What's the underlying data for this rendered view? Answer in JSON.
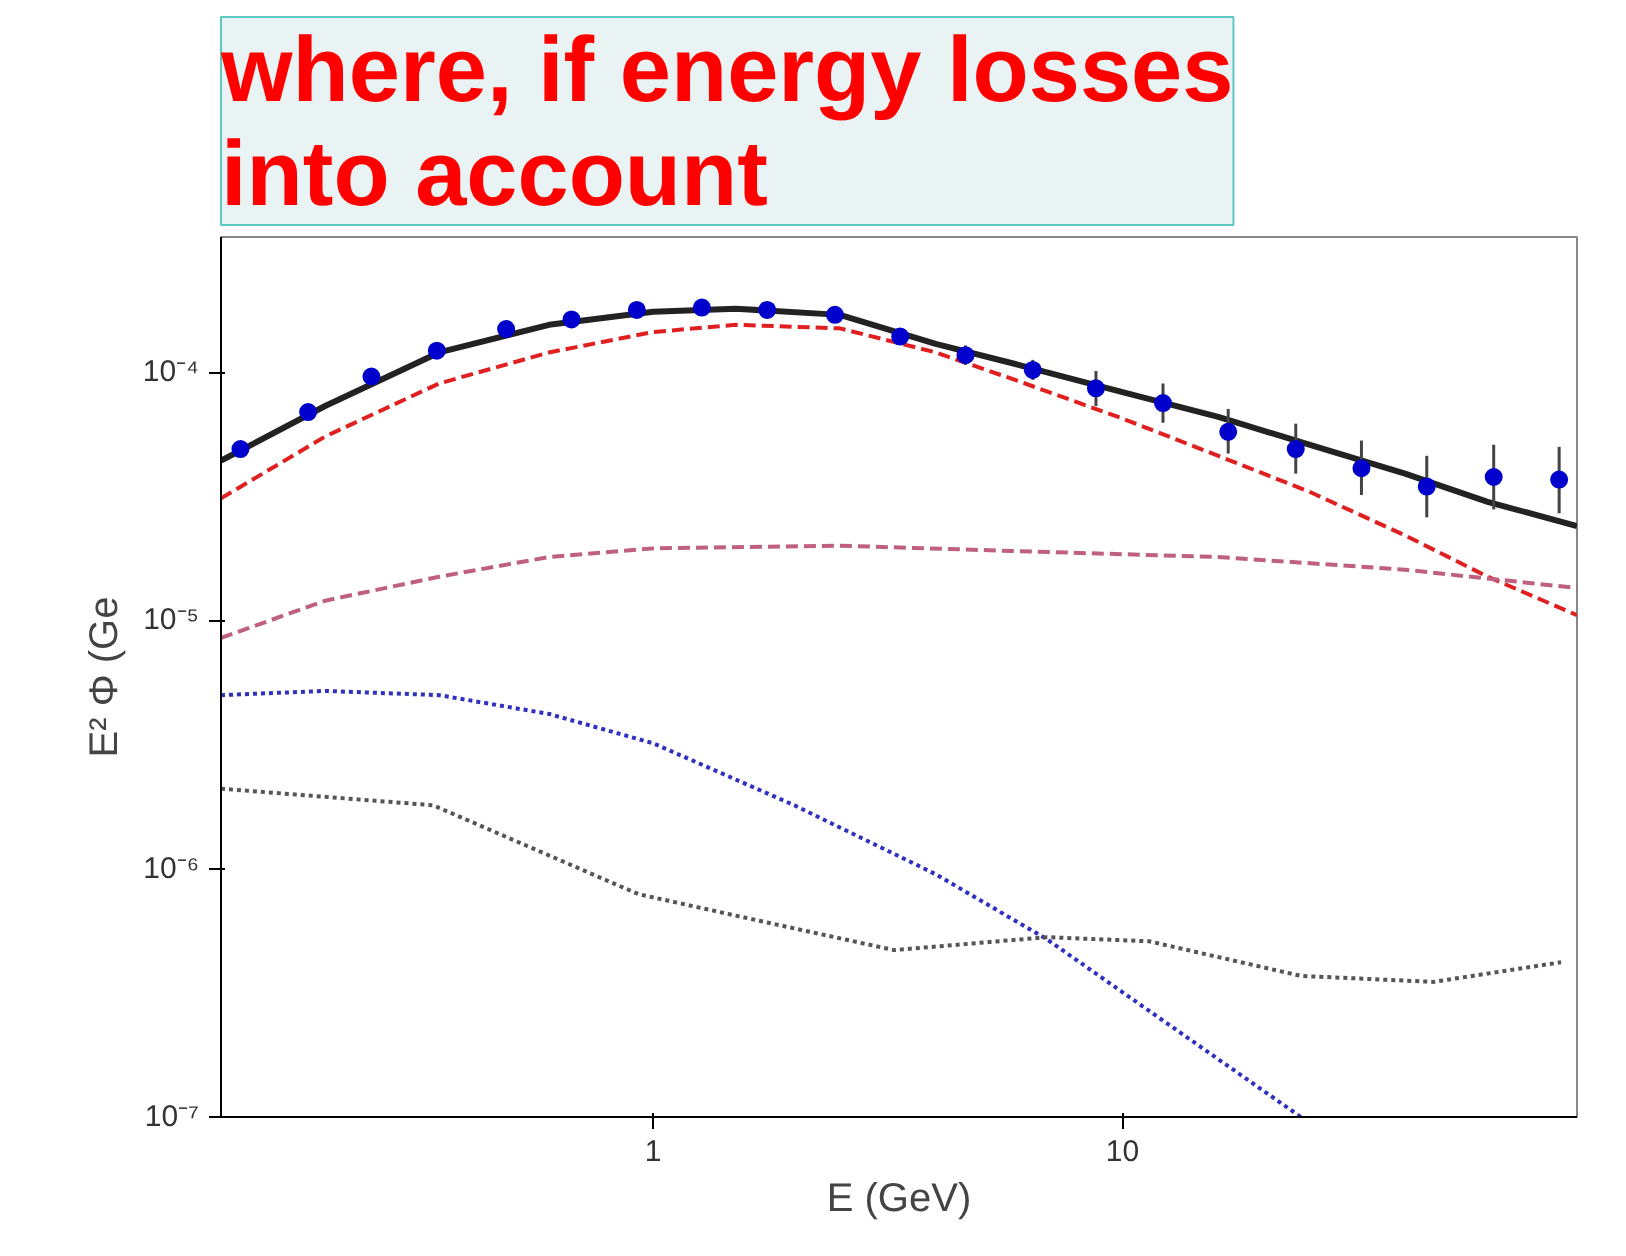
{
  "chart_data": {
    "type": "line",
    "title": "where, if energy losses\ninto account",
    "xlabel": "E (GeV)",
    "ylabel": "E² Φ (Ge",
    "log": "xy",
    "grid": false,
    "xlim": [
      0.12,
      93
    ],
    "ylim": [
      1e-07,
      0.00035
    ],
    "xticks": [
      1,
      10
    ],
    "yticks": [
      {
        "value": 1e-07,
        "label": "10⁻⁷"
      },
      {
        "value": 1e-06,
        "label": "10⁻⁶"
      },
      {
        "value": 1e-05,
        "label": "10⁻⁵"
      },
      {
        "value": 0.0001,
        "label": "10⁻⁴"
      }
    ],
    "series": [
      {
        "color": "#e02020",
        "line_style": "dashed",
        "x": [
          0.12,
          0.2,
          0.35,
          0.6,
          1,
          1.5,
          2.5,
          4,
          6,
          10,
          16,
          25,
          40,
          60,
          93
        ],
        "values": [
          3.1e-05,
          5.5e-05,
          9e-05,
          0.00012,
          0.000145,
          0.000155,
          0.00015,
          0.00012,
          9.2e-05,
          6.5e-05,
          4.6e-05,
          3.3e-05,
          2.2e-05,
          1.5e-05,
          1.05e-05
        ]
      },
      {
        "color": "#c06080",
        "line_style": "dashed",
        "x": [
          0.12,
          0.2,
          0.35,
          0.6,
          1,
          2.5,
          6,
          16,
          40,
          93
        ],
        "values": [
          8.5e-06,
          1.2e-05,
          1.5e-05,
          1.8e-05,
          1.95e-05,
          2e-05,
          1.9e-05,
          1.8e-05,
          1.6e-05,
          1.35e-05
        ]
      },
      {
        "color": "#3030c0",
        "line_style": "dotted",
        "x": [
          0.12,
          0.2,
          0.35,
          0.6,
          1,
          2,
          4,
          6.9,
          12,
          24
        ],
        "values": [
          5e-06,
          5.2e-06,
          5e-06,
          4.2e-06,
          3.2e-06,
          1.8e-06,
          9.5e-07,
          5.2e-07,
          2.5e-07,
          1e-07
        ]
      },
      {
        "color": "#555555",
        "line_style": "dotted",
        "x": [
          0.12,
          0.34,
          0.93,
          1.54,
          3.26,
          6.9,
          11.4,
          24,
          46,
          86
        ],
        "values": [
          2.1e-06,
          1.8e-06,
          7.9e-07,
          6.4e-07,
          4.7e-07,
          5.3e-07,
          5.1e-07,
          3.7e-07,
          3.5e-07,
          4.2e-07
        ]
      },
      {
        "color": "#222222",
        "line_style": "solid",
        "x": [
          0.12,
          0.2,
          0.35,
          0.6,
          1,
          1.5,
          2.5,
          4,
          6,
          10,
          16,
          25,
          40,
          60,
          93
        ],
        "values": [
          4.4e-05,
          7.3e-05,
          0.00012,
          0.000155,
          0.000175,
          0.00018,
          0.00017,
          0.00013,
          0.000107,
          8.3e-05,
          6.6e-05,
          5.1e-05,
          3.9e-05,
          3e-05,
          2.4e-05
        ]
      },
      {
        "type": "scatter",
        "color": "#0000cc",
        "marker": "circle",
        "x": [
          0.132,
          0.184,
          0.251,
          0.346,
          0.486,
          0.67,
          0.923,
          1.27,
          1.75,
          2.44,
          3.36,
          4.63,
          6.44,
          8.78,
          12.2,
          16.8,
          23.4,
          32.3,
          44.5,
          61.8,
          85.2
        ],
        "values": [
          4.9e-05,
          6.9e-05,
          9.6e-05,
          0.000122,
          0.000149,
          0.000163,
          0.000178,
          0.000182,
          0.000178,
          0.00017,
          0.000139,
          0.000117,
          0.000102,
          8.6e-05,
          7.5e-05,
          5.75e-05,
          4.9e-05,
          4.1e-05,
          3.46e-05,
          3.78e-05,
          3.69e-05
        ],
        "errors": [
          null,
          null,
          null,
          null,
          null,
          null,
          null,
          null,
          null,
          null,
          null,
          [
            0.000107,
            0.000128
          ],
          [
            9.3e-05,
            0.000112
          ],
          [
            7.3e-05,
            0.000101
          ],
          [
            6.25e-05,
            9e-05
          ],
          [
            4.7e-05,
            7.1e-05
          ],
          [
            3.9e-05,
            6.2e-05
          ],
          [
            3.2e-05,
            5.3e-05
          ],
          [
            2.6e-05,
            4.6e-05
          ],
          [
            2.8e-05,
            5.1e-05
          ],
          [
            2.7e-05,
            5e-05
          ]
        ]
      }
    ]
  }
}
